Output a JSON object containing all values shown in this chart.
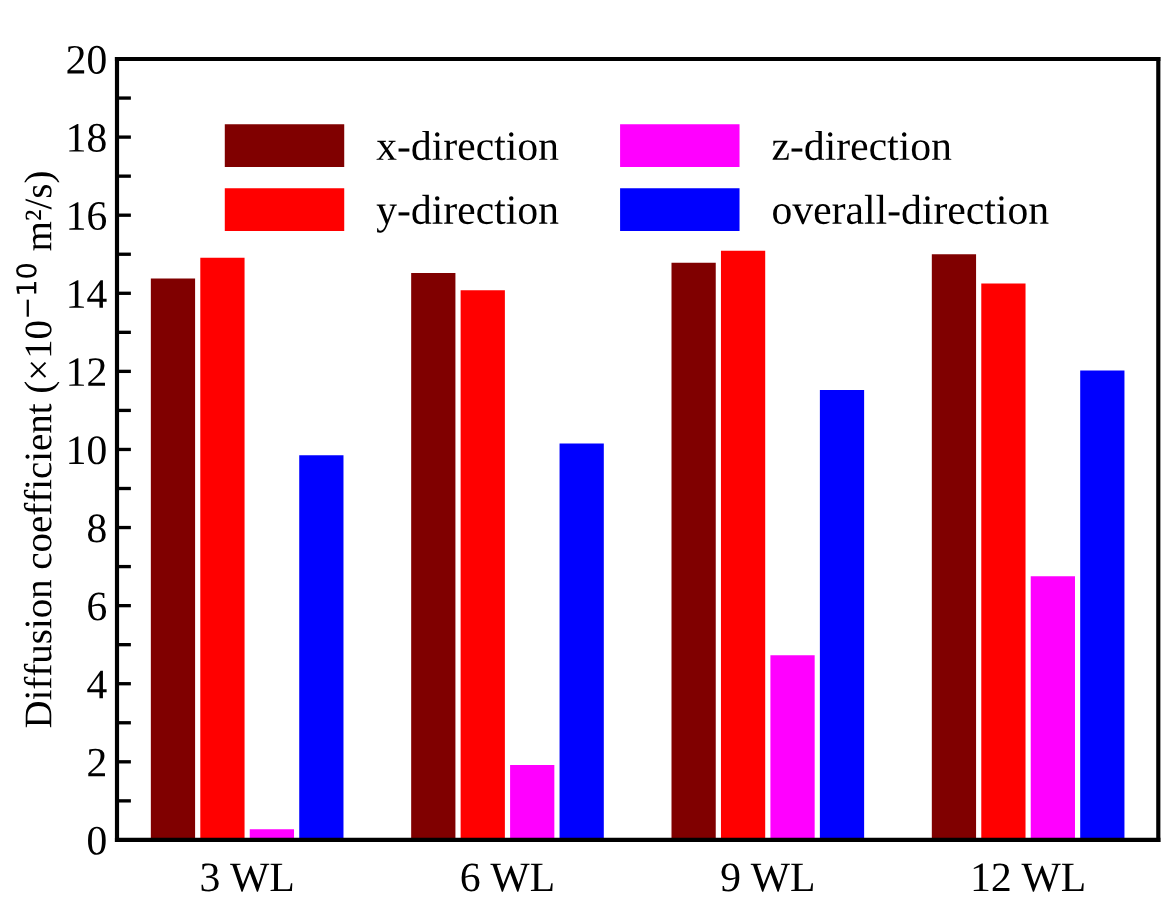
{
  "chart_data": {
    "type": "bar",
    "ylabel": "Diffusion coefficient (×10$^{−10}$ m²/s)",
    "categories": [
      "3 WL",
      "6 WL",
      "9 WL",
      "12 WL"
    ],
    "series": [
      {
        "name": "x-direction",
        "color": "#800000",
        "values": [
          14.38,
          14.52,
          14.78,
          15.0
        ]
      },
      {
        "name": "y-direction",
        "color": "#ff0000",
        "values": [
          14.91,
          14.08,
          15.09,
          14.25
        ]
      },
      {
        "name": "z-direction",
        "color": "#ff00ff",
        "values": [
          0.27,
          1.92,
          4.73,
          6.75
        ]
      },
      {
        "name": "overall-direction",
        "color": "#0000ff",
        "values": [
          9.85,
          10.15,
          11.52,
          12.02
        ]
      }
    ],
    "ylim": [
      0,
      20
    ],
    "yticks": [
      0,
      {
        "value": 1,
        "label": null
      },
      2,
      {
        "value": 3,
        "label": null
      },
      4,
      {
        "value": 5,
        "label": null
      },
      6,
      {
        "value": 7,
        "label": null
      },
      8,
      {
        "value": 9,
        "label": null
      },
      10,
      {
        "value": 11,
        "label": null
      },
      12,
      {
        "value": 13,
        "label": null
      },
      14,
      {
        "value": 15,
        "label": null
      },
      16,
      {
        "value": 17,
        "label": null
      },
      18,
      {
        "value": 19,
        "label": null
      },
      20
    ],
    "grid": false,
    "legend": "top"
  }
}
